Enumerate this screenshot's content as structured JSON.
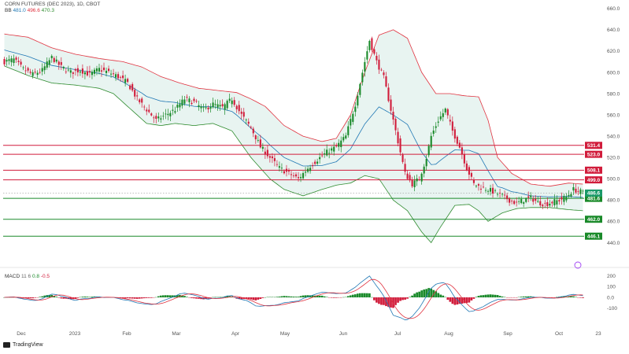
{
  "header": {
    "title": "CORN FUTURES (DEC 2023), 1D, CBOT",
    "indicator": "BB",
    "bb_values": [
      "481.0",
      "496.6",
      "470.3"
    ],
    "macd_label": "MACD",
    "macd_params": "11 6",
    "macd_values": [
      "0.8",
      "-0.5"
    ]
  },
  "branding": {
    "name": "TradingView"
  },
  "colors": {
    "up": "#1a8a2a",
    "down": "#d11c3b",
    "bb_upper": "#e0323f",
    "bb_lower": "#2e8b2e",
    "bb_basis": "#1f77b4",
    "bb_fill": "#e8f4f1",
    "resistance": "#d11c3b",
    "support": "#1a8a2a",
    "macd_line": "#1f77b4",
    "signal_line": "#e0323f",
    "tag_resistance": "#d11c3b",
    "tag_support": "#1a8a2a",
    "tag_price": "#1a9a6a"
  },
  "chart_data": {
    "type": "candlestick",
    "title": "CORN FUTURES (DEC 2023), 1D, CBOT",
    "price_axis": {
      "ticks": [
        "660.0",
        "640.0",
        "620.0",
        "600.0",
        "580.0",
        "560.0",
        "540.0",
        "520.0",
        "500.0",
        "480.0",
        "460.0",
        "440.0"
      ],
      "ylim": [
        430,
        665
      ]
    },
    "x_axis": {
      "ticks": [
        "Dec",
        "2023",
        "Feb",
        "Mar",
        "Apr",
        "May",
        "Jun",
        "Jul",
        "Aug",
        "Sep",
        "Oct",
        "23"
      ]
    },
    "resistance_levels": [
      "531.4",
      "523.0",
      "508.1",
      "499.0"
    ],
    "support_levels": [
      "481.6",
      "462.0",
      "446.1"
    ],
    "last_price": "486.6",
    "price_anchors": [
      [
        0,
        610
      ],
      [
        4,
        612
      ],
      [
        8,
        603
      ],
      [
        12,
        598
      ],
      [
        16,
        602
      ],
      [
        20,
        614
      ],
      [
        24,
        605
      ],
      [
        28,
        600
      ],
      [
        32,
        602
      ],
      [
        36,
        598
      ],
      [
        40,
        603
      ],
      [
        44,
        600
      ],
      [
        48,
        596
      ],
      [
        52,
        590
      ],
      [
        56,
        575
      ],
      [
        60,
        565
      ],
      [
        64,
        555
      ],
      [
        68,
        560
      ],
      [
        72,
        565
      ],
      [
        76,
        575
      ],
      [
        80,
        572
      ],
      [
        84,
        565
      ],
      [
        88,
        570
      ],
      [
        92,
        567
      ],
      [
        96,
        575
      ],
      [
        100,
        560
      ],
      [
        104,
        548
      ],
      [
        108,
        530
      ],
      [
        112,
        520
      ],
      [
        116,
        510
      ],
      [
        120,
        505
      ],
      [
        124,
        500
      ],
      [
        128,
        510
      ],
      [
        132,
        518
      ],
      [
        136,
        525
      ],
      [
        140,
        530
      ],
      [
        144,
        540
      ],
      [
        148,
        570
      ],
      [
        151,
        600
      ],
      [
        154,
        630
      ],
      [
        157,
        610
      ],
      [
        160,
        595
      ],
      [
        163,
        565
      ],
      [
        166,
        535
      ],
      [
        169,
        505
      ],
      [
        172,
        495
      ],
      [
        175,
        500
      ],
      [
        178,
        520
      ],
      [
        180,
        540
      ],
      [
        183,
        555
      ],
      [
        186,
        565
      ],
      [
        189,
        545
      ],
      [
        192,
        530
      ],
      [
        195,
        510
      ],
      [
        198,
        495
      ],
      [
        201,
        492
      ],
      [
        204,
        490
      ],
      [
        207,
        487
      ],
      [
        210,
        484
      ],
      [
        213,
        480
      ],
      [
        216,
        477
      ],
      [
        219,
        480
      ],
      [
        222,
        482
      ],
      [
        225,
        478
      ],
      [
        228,
        476
      ],
      [
        231,
        478
      ],
      [
        234,
        480
      ],
      [
        237,
        483
      ],
      [
        240,
        490
      ],
      [
        244,
        487
      ]
    ],
    "bb_upper_anchors": [
      [
        0,
        636
      ],
      [
        10,
        633
      ],
      [
        20,
        623
      ],
      [
        30,
        617
      ],
      [
        40,
        613
      ],
      [
        50,
        610
      ],
      [
        58,
        605
      ],
      [
        66,
        596
      ],
      [
        74,
        590
      ],
      [
        82,
        585
      ],
      [
        90,
        583
      ],
      [
        98,
        581
      ],
      [
        104,
        575
      ],
      [
        110,
        568
      ],
      [
        118,
        550
      ],
      [
        126,
        540
      ],
      [
        134,
        535
      ],
      [
        140,
        538
      ],
      [
        146,
        560
      ],
      [
        152,
        600
      ],
      [
        158,
        635
      ],
      [
        164,
        640
      ],
      [
        170,
        632
      ],
      [
        176,
        600
      ],
      [
        182,
        580
      ],
      [
        188,
        580
      ],
      [
        194,
        578
      ],
      [
        200,
        577
      ],
      [
        204,
        555
      ],
      [
        208,
        520
      ],
      [
        214,
        505
      ],
      [
        222,
        495
      ],
      [
        230,
        493
      ],
      [
        238,
        496
      ],
      [
        244,
        495
      ]
    ],
    "bb_lower_anchors": [
      [
        0,
        606
      ],
      [
        10,
        597
      ],
      [
        20,
        590
      ],
      [
        30,
        588
      ],
      [
        40,
        585
      ],
      [
        46,
        580
      ],
      [
        52,
        568
      ],
      [
        60,
        552
      ],
      [
        66,
        550
      ],
      [
        72,
        552
      ],
      [
        80,
        550
      ],
      [
        88,
        552
      ],
      [
        96,
        545
      ],
      [
        104,
        520
      ],
      [
        112,
        500
      ],
      [
        118,
        490
      ],
      [
        126,
        484
      ],
      [
        134,
        490
      ],
      [
        140,
        494
      ],
      [
        146,
        496
      ],
      [
        152,
        503
      ],
      [
        158,
        500
      ],
      [
        164,
        480
      ],
      [
        170,
        470
      ],
      [
        176,
        450
      ],
      [
        180,
        440
      ],
      [
        184,
        455
      ],
      [
        190,
        475
      ],
      [
        196,
        476
      ],
      [
        200,
        470
      ],
      [
        204,
        460
      ],
      [
        210,
        468
      ],
      [
        216,
        472
      ],
      [
        222,
        473
      ],
      [
        230,
        473
      ],
      [
        238,
        471
      ],
      [
        244,
        470
      ]
    ],
    "macd": {
      "ticks": [
        "200",
        "100",
        "0.0",
        "-100"
      ],
      "ylim": [
        -160,
        240
      ]
    }
  }
}
